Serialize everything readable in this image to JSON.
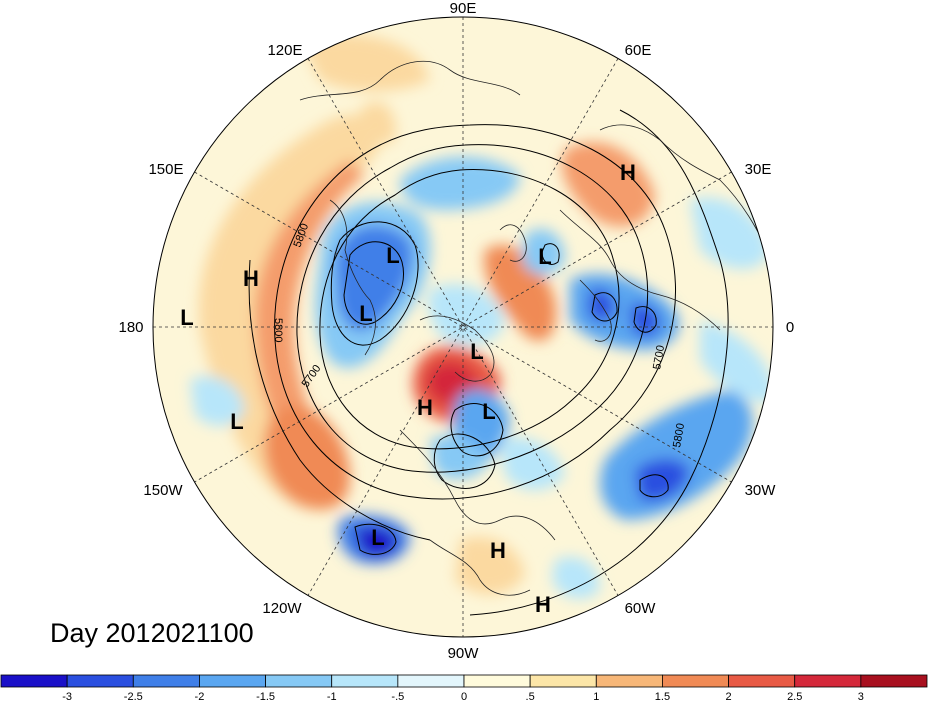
{
  "title": "Day 2012021100",
  "longitude_labels": [
    "90E",
    "60E",
    "30E",
    "0",
    "30W",
    "60W",
    "90W",
    "120W",
    "150W",
    "180",
    "150E",
    "120E"
  ],
  "contour_labels": [
    "5800",
    "5800",
    "5700",
    "5700",
    "5800"
  ],
  "pressure_centers": [
    {
      "label": "L",
      "type": "low"
    },
    {
      "label": "L",
      "type": "low"
    },
    {
      "label": "L",
      "type": "low"
    },
    {
      "label": "L",
      "type": "low"
    },
    {
      "label": "L",
      "type": "low"
    },
    {
      "label": "L",
      "type": "low"
    },
    {
      "label": "L",
      "type": "low"
    },
    {
      "label": "L",
      "type": "low"
    },
    {
      "label": "H",
      "type": "high"
    },
    {
      "label": "H",
      "type": "high"
    },
    {
      "label": "H",
      "type": "high"
    },
    {
      "label": "H",
      "type": "high"
    },
    {
      "label": "H",
      "type": "high"
    }
  ],
  "colorbar": {
    "tick_labels": [
      "-3",
      "-2.5",
      "-2",
      "-1.5",
      "-1",
      "-.5",
      "0",
      ".5",
      "1",
      "1.5",
      "2",
      "2.5",
      "3"
    ],
    "colors": [
      "#1a10c8",
      "#2a4fe0",
      "#3f7fe8",
      "#5aa6f0",
      "#86c9f5",
      "#b7e6fa",
      "#e3f6fc",
      "#fffbdc",
      "#fce6a8",
      "#f7b778",
      "#f08a55",
      "#e85a45",
      "#d4283a",
      "#a8101f"
    ]
  }
}
